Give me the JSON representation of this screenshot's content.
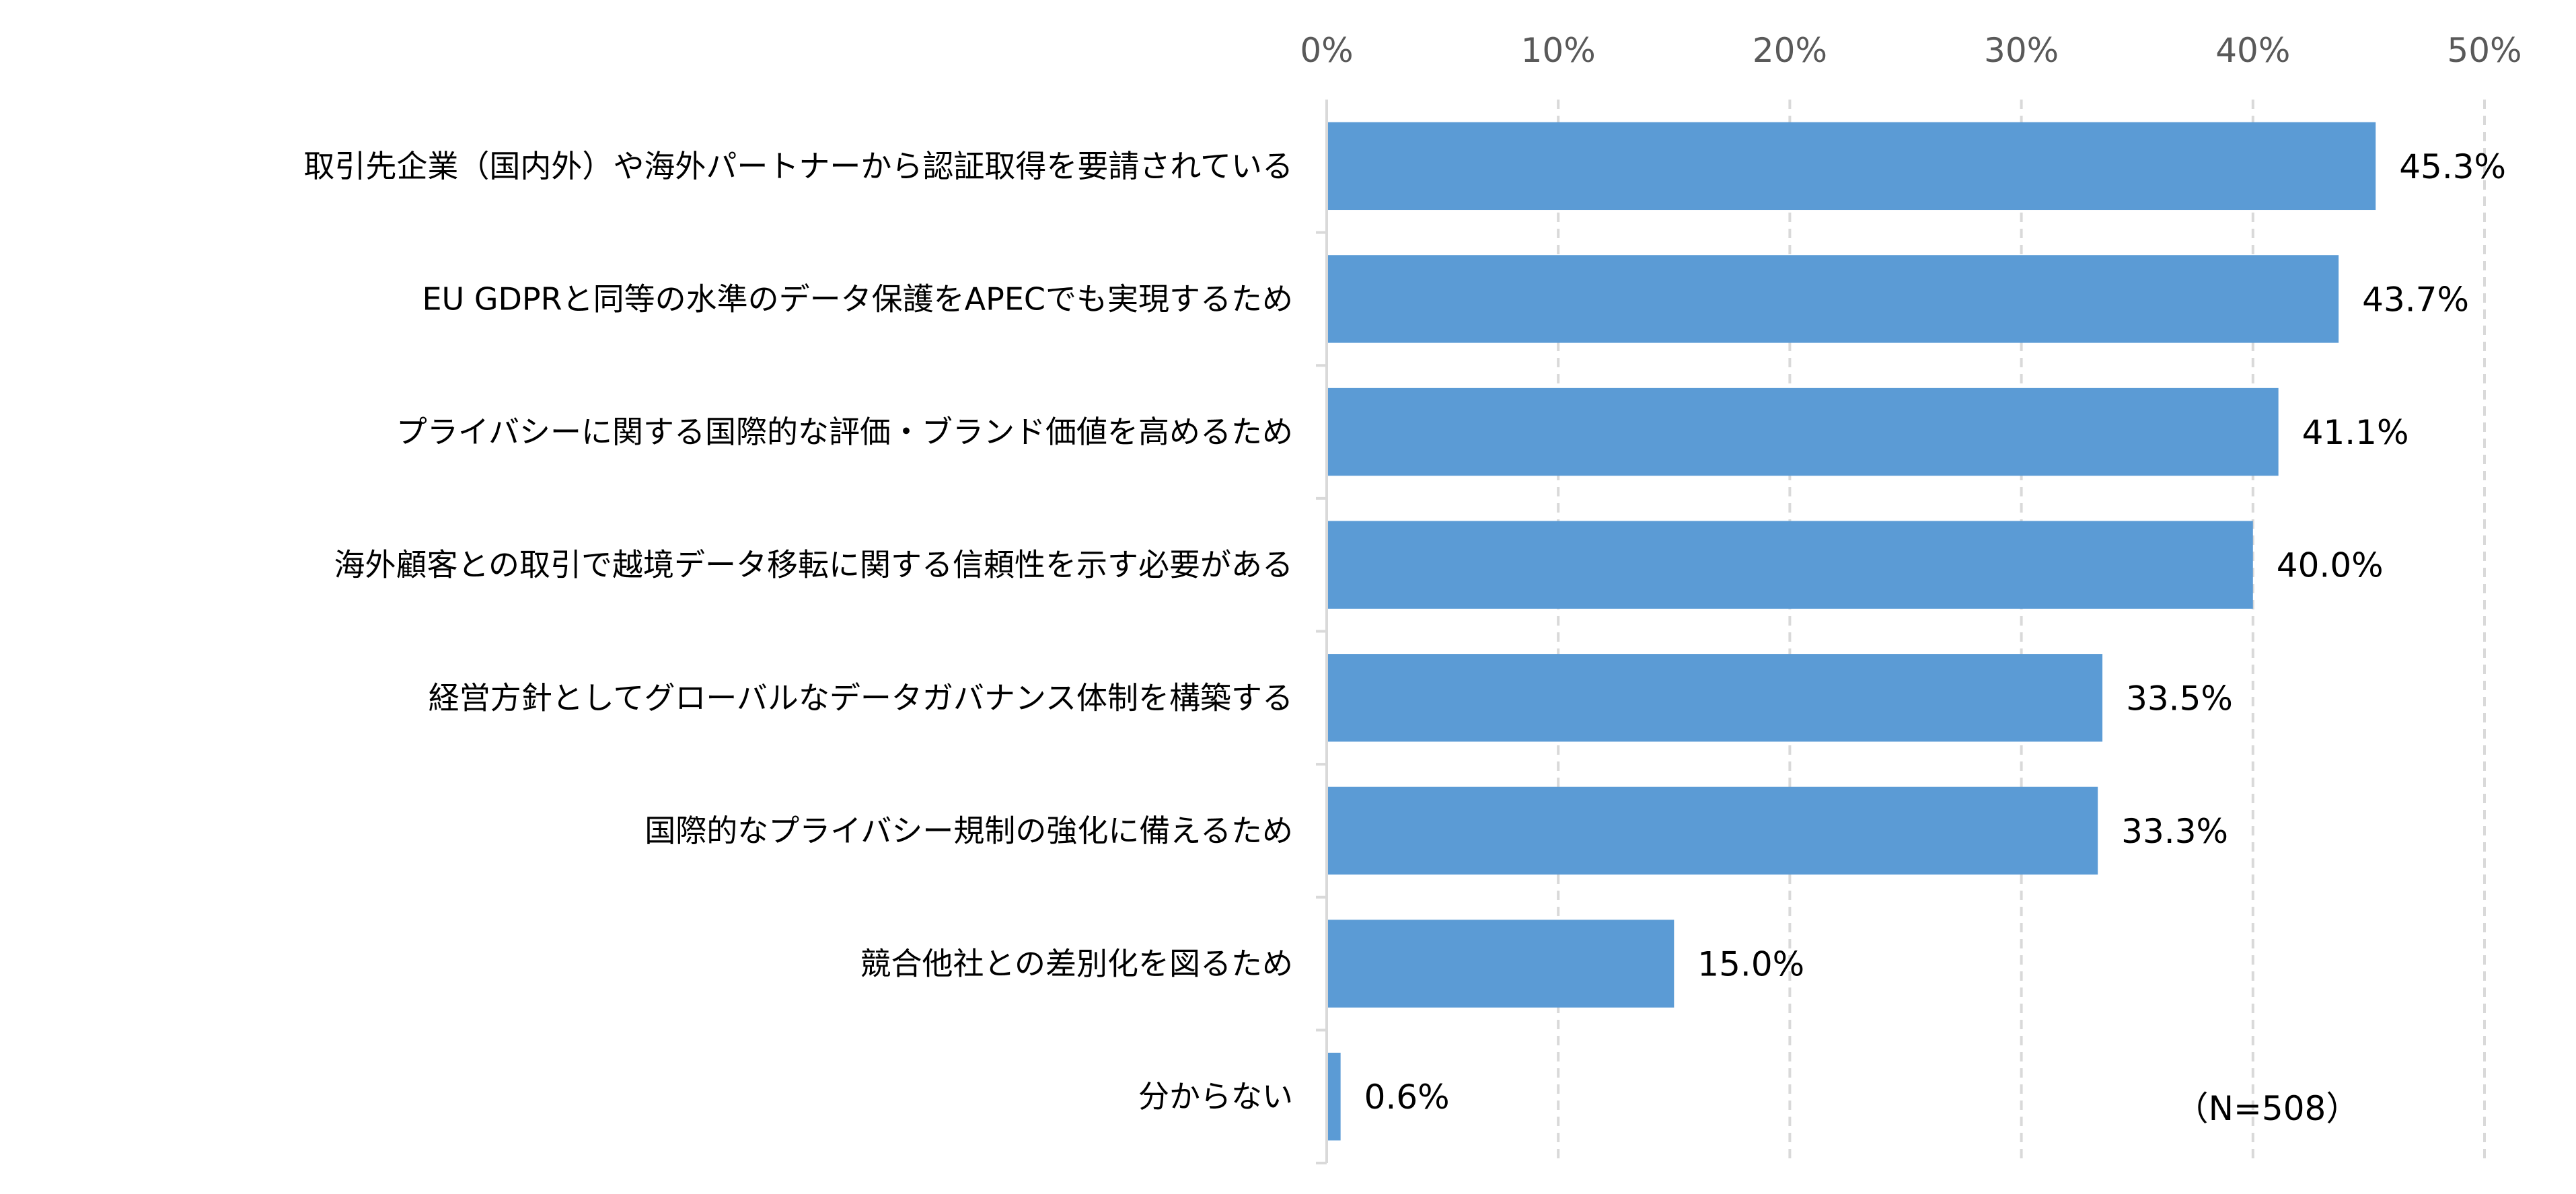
{
  "chart_data": {
    "type": "bar",
    "orientation": "horizontal",
    "categories": [
      "取引先企業（国内外）や海外パートナーから認証取得を要請されている",
      "EU GDPRと同等の水準のデータ保護をAPECでも実現するため",
      "プライバシーに関する国際的な評価・ブランド価値を高めるため",
      "海外顧客との取引で越境データ移転に関する信頼性を示す必要がある",
      "経営方針としてグローバルなデータガバナンス体制を構築する",
      "国際的なプライバシー規制の強化に備えるため",
      "競合他社との差別化を図るため",
      "分からない"
    ],
    "values": [
      45.3,
      43.7,
      41.1,
      40.0,
      33.5,
      33.3,
      15.0,
      0.6
    ],
    "value_labels": [
      "45.3%",
      "43.7%",
      "41.1%",
      "40.0%",
      "33.5%",
      "33.3%",
      "15.0%",
      "0.6%"
    ],
    "xlim": [
      0,
      50
    ],
    "x_ticks": [
      0,
      10,
      20,
      30,
      40,
      50
    ],
    "x_tick_labels": [
      "0%",
      "10%",
      "20%",
      "30%",
      "40%",
      "50%"
    ],
    "x_axis_position": "top",
    "grid": "vertical dashed",
    "annotation": "（N=508）",
    "colors": {
      "bar": "#5B9BD5",
      "grid": "#D9D9D9",
      "tick_text": "#595959"
    }
  }
}
